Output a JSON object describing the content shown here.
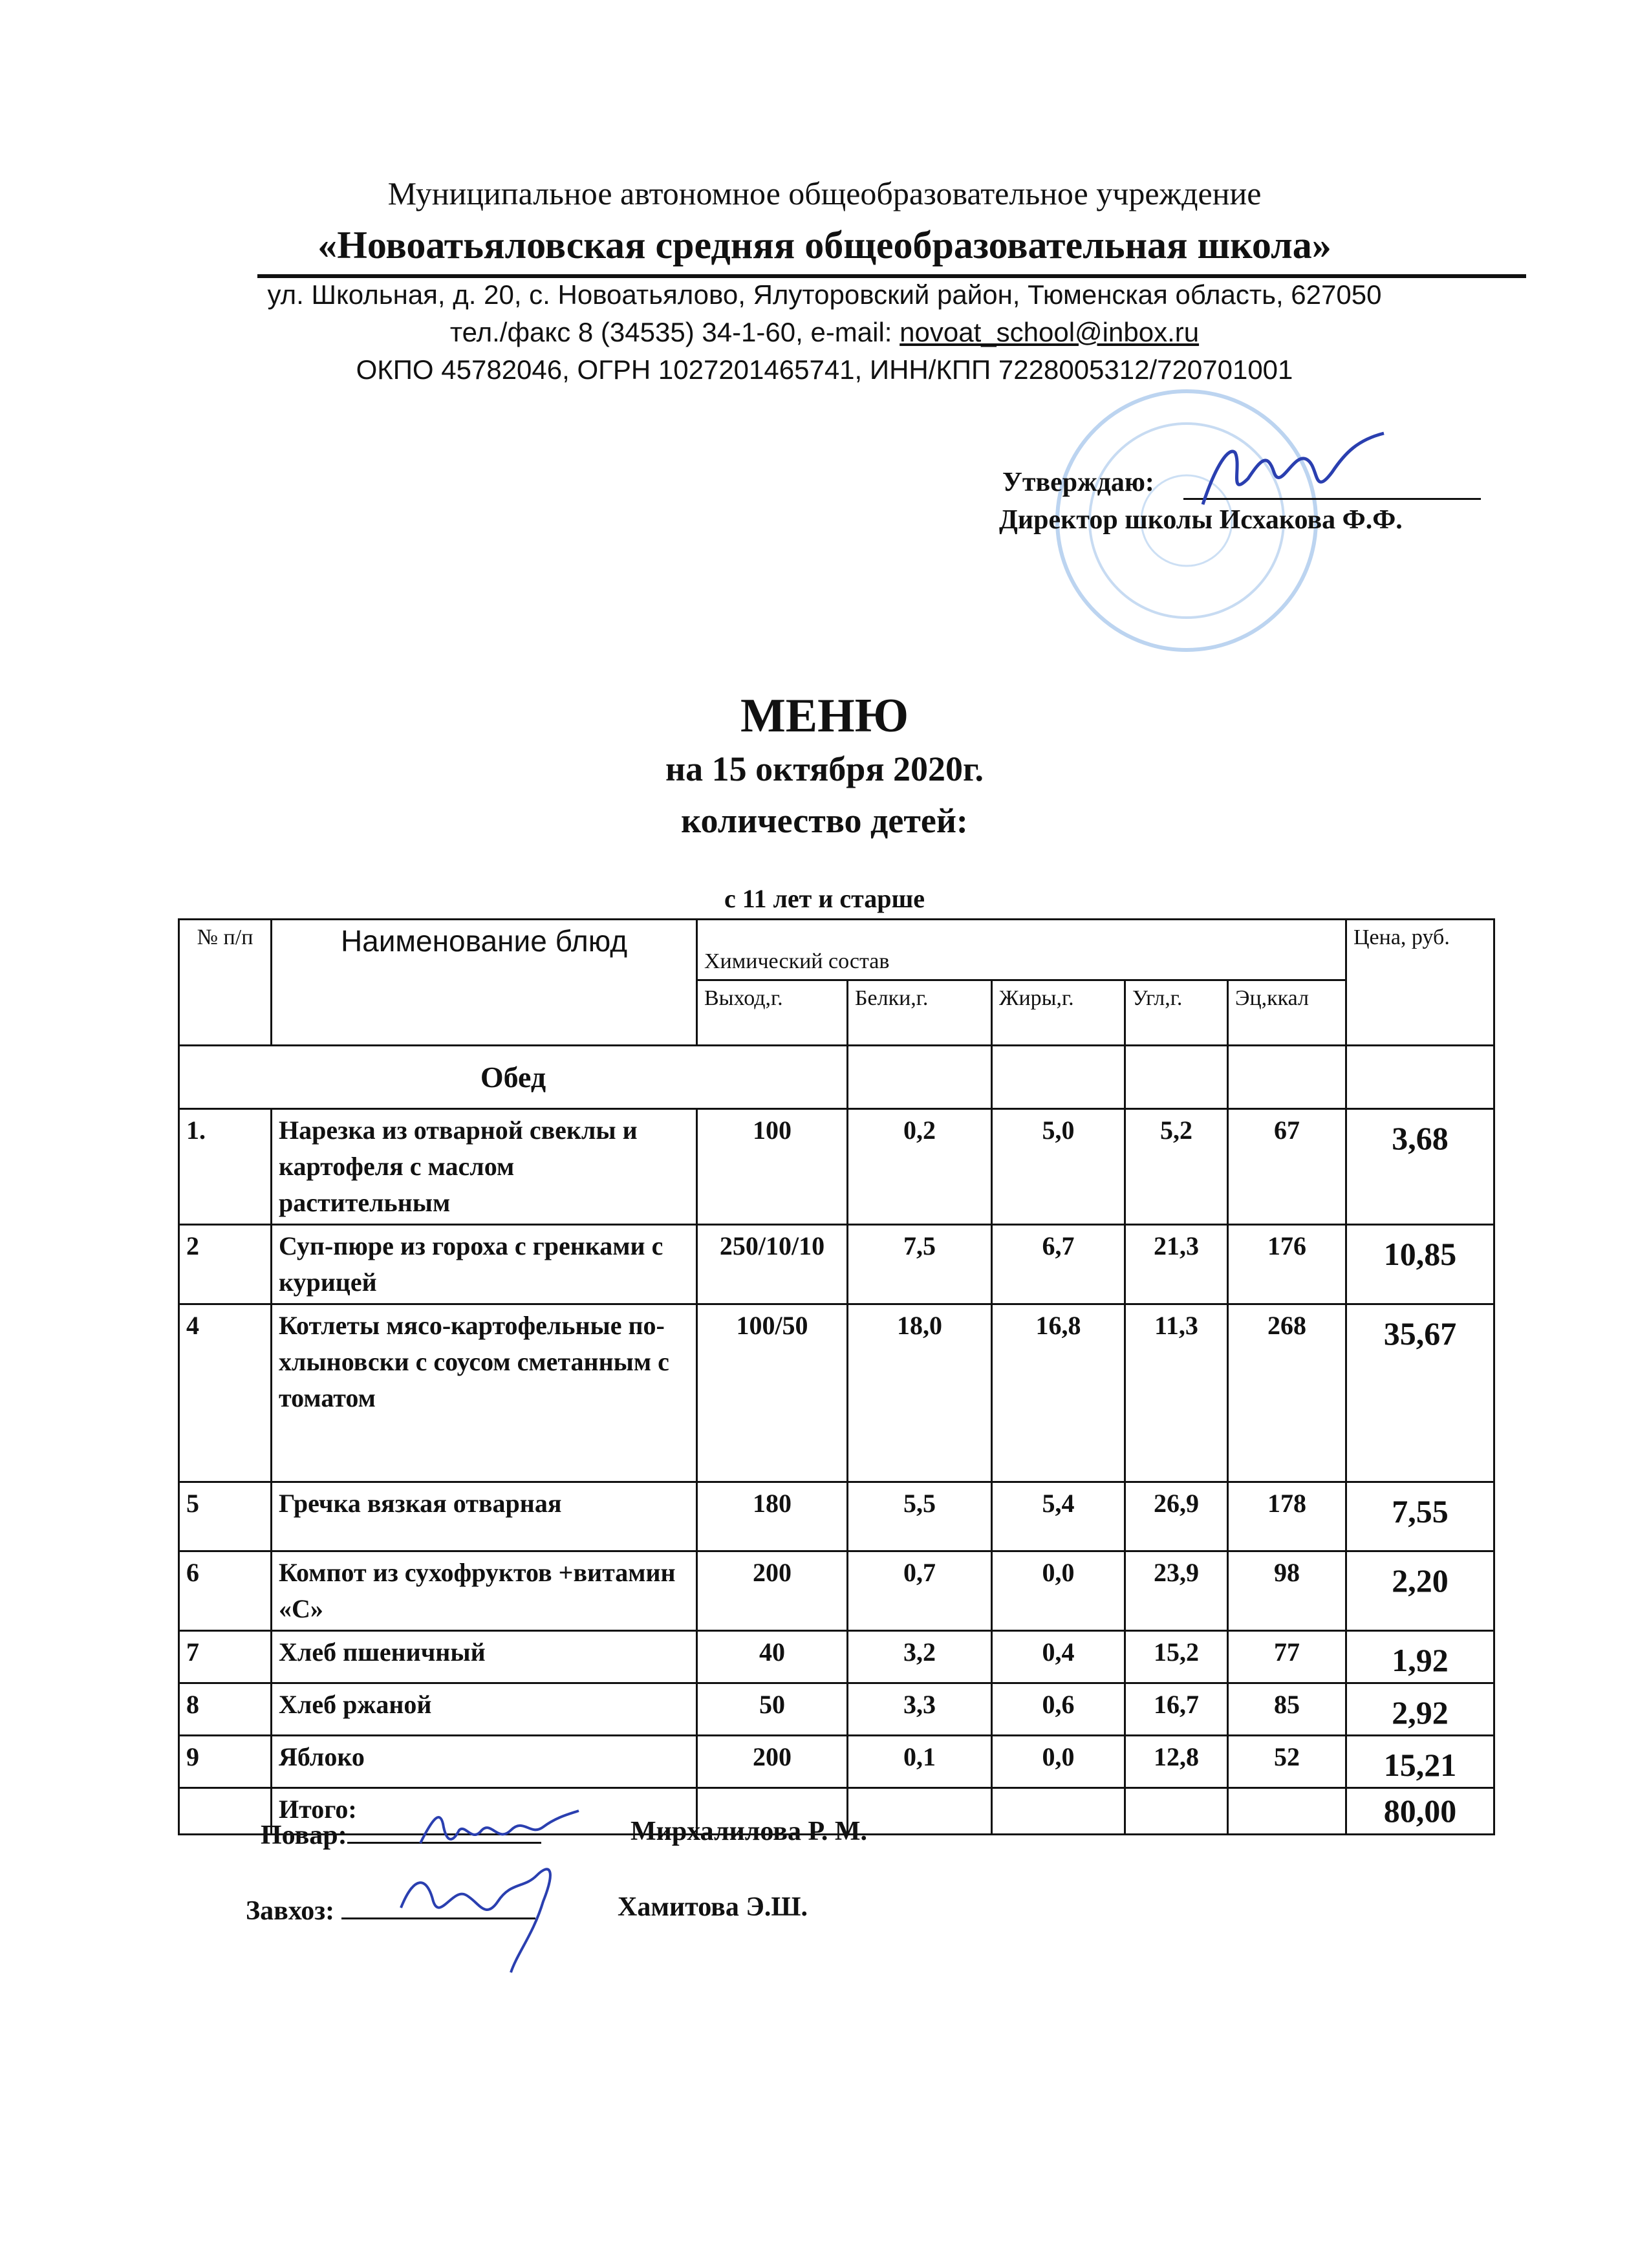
{
  "header": {
    "org_line": "Муниципальное автономное общеобразовательное учреждение",
    "school_name": "«Новоатьяловская средняя общеобразовательная школа»",
    "address": "ул. Школьная, д. 20, с. Новоатьялово, Ялуторовский район, Тюменская область, 627050",
    "phone_prefix": "тел./факс 8 (34535) 34-1-60,  e-mail: ",
    "email": "novoat_school@inbox.ru",
    "codes": "ОКПО 45782046, ОГРН 1027201465741, ИНН/КПП 7228005312/720701001"
  },
  "approval": {
    "label": "Утверждаю:",
    "signer": "Директор школы Исхакова Ф.Ф."
  },
  "title": {
    "main": "МЕНЮ",
    "date": "на 15 октября 2020г.",
    "children": "количество детей:",
    "age_group": "с 11 лет и старше"
  },
  "table": {
    "headers": {
      "num": "№ п/п",
      "name": "Наименование блюд",
      "chem": "Химический состав",
      "price": "Цена, руб.",
      "yield": "Выход,г.",
      "protein": "Белки,г.",
      "fat": "Жиры,г.",
      "carbs": "Угл,г.",
      "energy": "Эц,ккал"
    },
    "section": "Обед",
    "rows": [
      {
        "num": "1.",
        "name": "Нарезка из отварной свеклы и картофеля с маслом растительным",
        "yield": "100",
        "protein": "0,2",
        "fat": "5,0",
        "carbs": "5,2",
        "energy": "67",
        "price": "3,68"
      },
      {
        "num": "2",
        "name": "Суп-пюре из гороха с гренками с курицей",
        "yield": "250/10/10",
        "protein": "7,5",
        "fat": "6,7",
        "carbs": "21,3",
        "energy": "176",
        "price": "10,85"
      },
      {
        "num": "4",
        "name": "Котлеты мясо-картофельные по-хлыновски с соусом сметанным с томатом",
        "yield": "100/50",
        "protein": "18,0",
        "fat": "16,8",
        "carbs": "11,3",
        "energy": "268",
        "price": "35,67"
      },
      {
        "num": "5",
        "name": "Гречка вязкая отварная",
        "yield": "180",
        "protein": "5,5",
        "fat": "5,4",
        "carbs": "26,9",
        "energy": "178",
        "price": "7,55"
      },
      {
        "num": "6",
        "name": "Компот из сухофруктов +витамин «С»",
        "yield": "200",
        "protein": "0,7",
        "fat": "0,0",
        "carbs": "23,9",
        "energy": "98",
        "price": "2,20"
      },
      {
        "num": "7",
        "name": "Хлеб пшеничный",
        "yield": "40",
        "protein": "3,2",
        "fat": "0,4",
        "carbs": "15,2",
        "energy": "77",
        "price": "1,92"
      },
      {
        "num": "8",
        "name": "Хлеб ржаной",
        "yield": "50",
        "protein": "3,3",
        "fat": "0,6",
        "carbs": "16,7",
        "energy": "85",
        "price": "2,92"
      },
      {
        "num": "9",
        "name": "Яблоко",
        "yield": "200",
        "protein": "0,1",
        "fat": "0,0",
        "carbs": "12,8",
        "energy": "52",
        "price": "15,21"
      }
    ],
    "total_label": "Итого:",
    "total_price": "80,00"
  },
  "signatures": {
    "cook_label": "Повар:",
    "cook_name": "Мирхалилова Р. М.",
    "manager_label": "Завхоз:",
    "manager_name": "Хамитова Э.Ш."
  },
  "colors": {
    "ink": "#111111",
    "stamp": "#6aa0dc",
    "signature": "#2a3fb0"
  }
}
